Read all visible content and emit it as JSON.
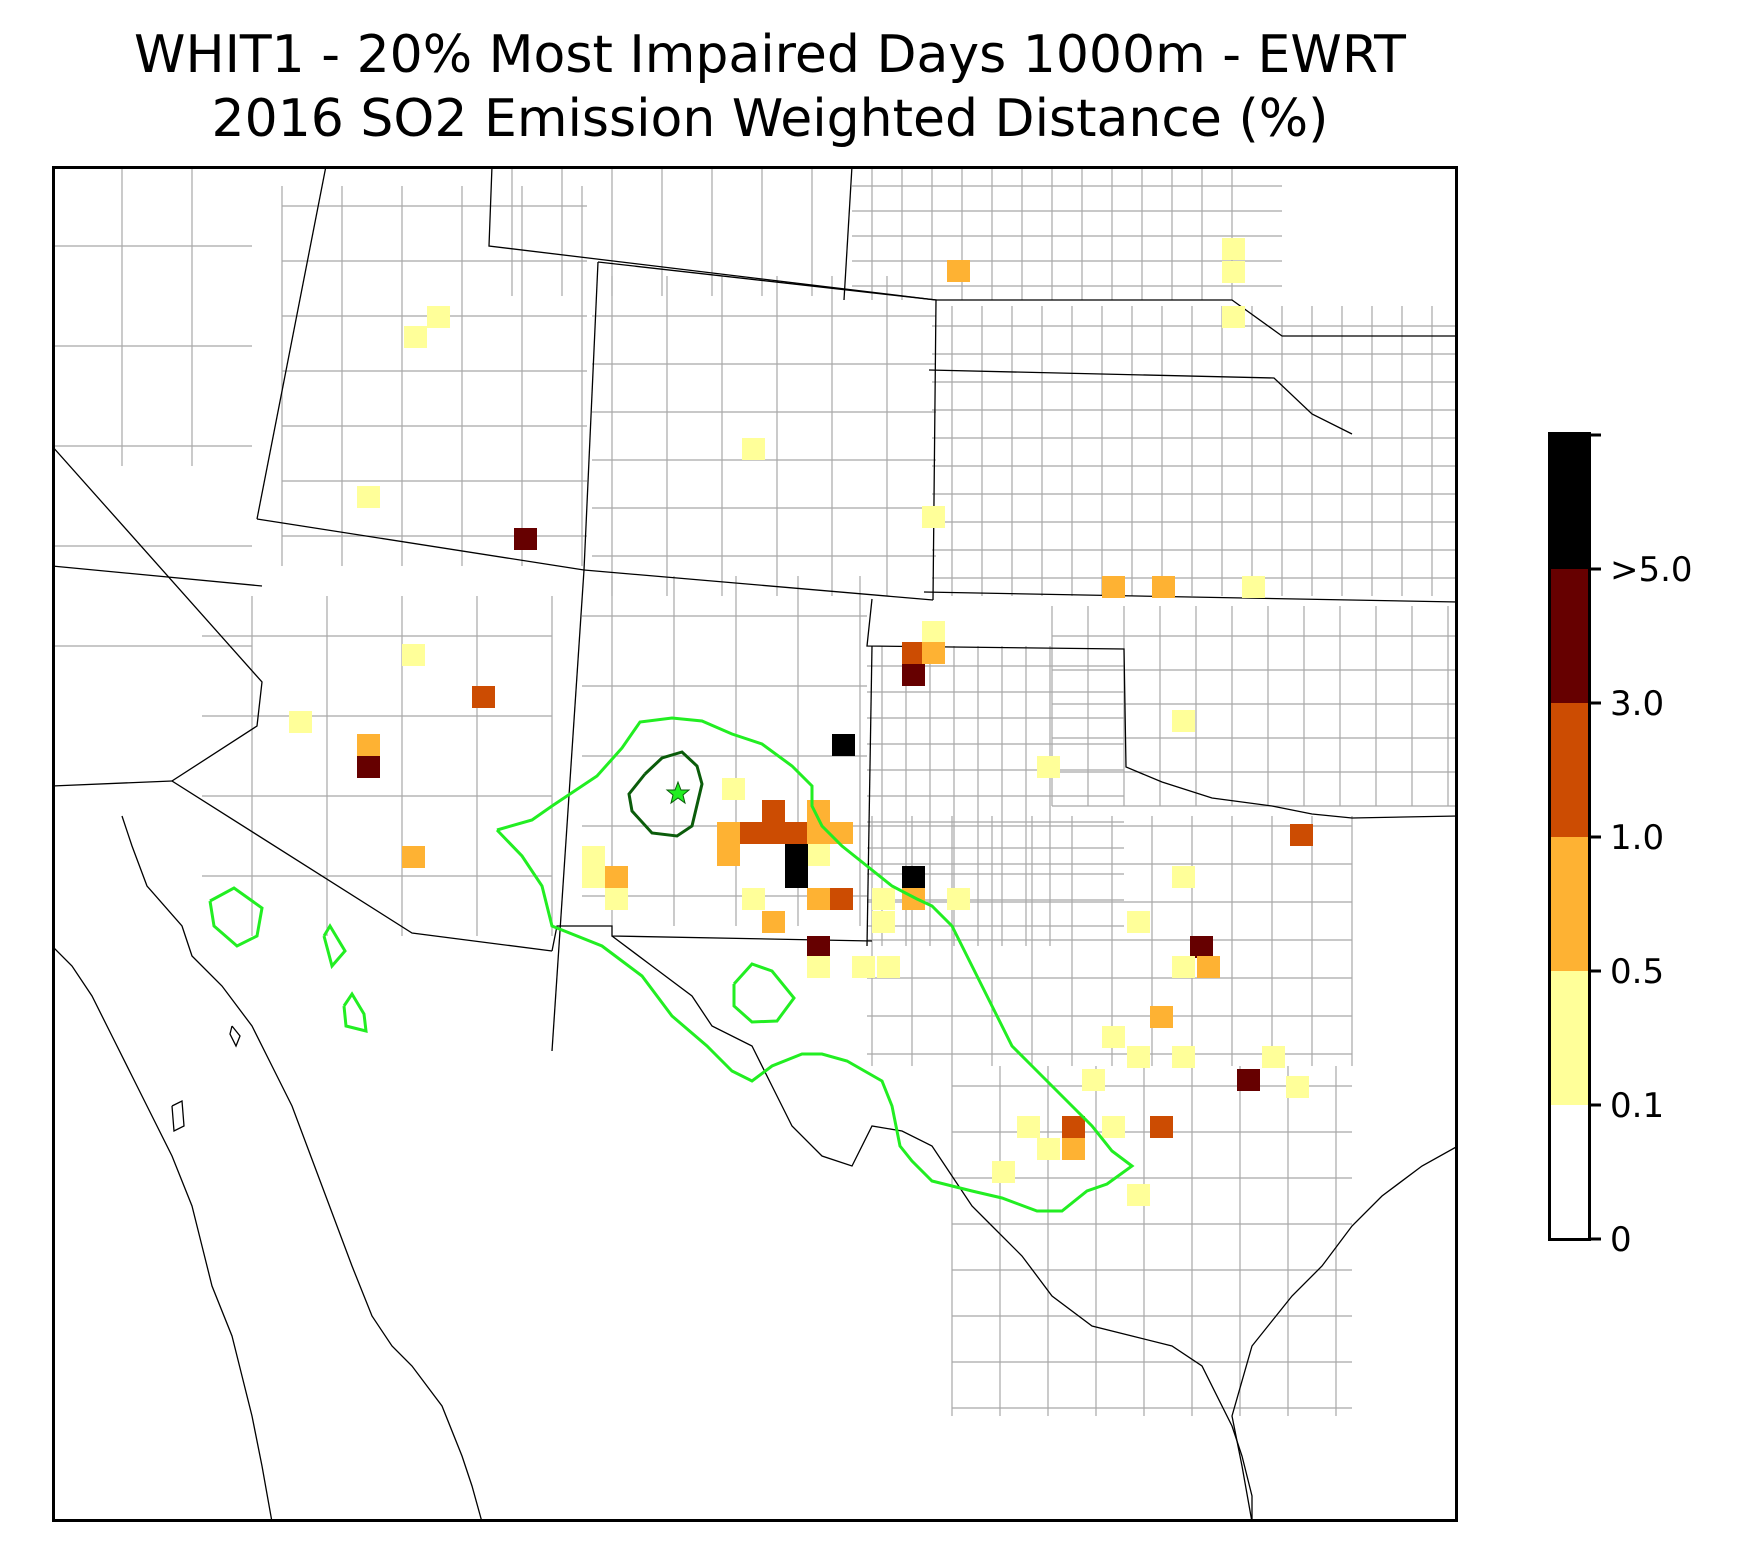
{
  "title": {
    "line1": "WHIT1 - 20% Most Impaired Days 1000m - EWRT",
    "line2": "2016 SO2 Emission Weighted Distance (%)"
  },
  "colorbar": {
    "bins": [
      {
        "label": "0",
        "color": "#ffffff"
      },
      {
        "label": "0.1",
        "color": "#ffff99"
      },
      {
        "label": "0.5",
        "color": "#feb233"
      },
      {
        "label": "1.0",
        "color": "#cc4c02"
      },
      {
        "label": "3.0",
        "color": "#660000"
      },
      {
        "label": ">5.0",
        "color": "#000000"
      }
    ]
  },
  "colors": {
    "state_border": "#000000",
    "county_border": "#a8a8a8",
    "contour_outer": "#22ee22",
    "contour_inner": "#0b5c0b",
    "site_marker": "#22ee22"
  },
  "site_marker_icon": "star-icon"
}
